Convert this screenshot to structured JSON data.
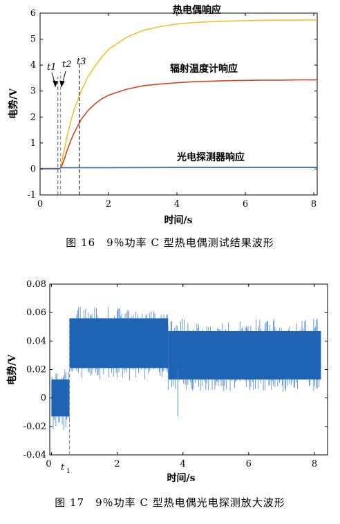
{
  "chart_data": [
    {
      "type": "line",
      "title": "",
      "xlabel": "时间/s",
      "ylabel": "电势/V",
      "xlim": [
        0,
        8.1
      ],
      "ylim": [
        -1,
        6
      ],
      "xticks": [
        0,
        2,
        4,
        6,
        8
      ],
      "yticks": [
        -1,
        0,
        1,
        2,
        3,
        4,
        5,
        6
      ],
      "grid": false,
      "series": [
        {
          "name": "热电偶响应",
          "color": "#f2c029",
          "x": [
            0.0,
            0.55,
            0.6,
            0.65,
            0.7,
            0.8,
            0.9,
            1.0,
            1.2,
            1.4,
            1.6,
            1.8,
            2.0,
            2.5,
            3.0,
            3.5,
            4.0,
            4.5,
            5.0,
            5.5,
            6.0,
            6.5,
            7.0,
            7.5,
            8.0,
            8.1
          ],
          "y": [
            0.02,
            0.02,
            0.05,
            0.35,
            0.7,
            1.3,
            1.85,
            2.3,
            3.0,
            3.55,
            3.95,
            4.3,
            4.6,
            5.05,
            5.33,
            5.48,
            5.58,
            5.64,
            5.67,
            5.69,
            5.71,
            5.72,
            5.73,
            5.73,
            5.74,
            5.74
          ]
        },
        {
          "name": "辐射温度计响应",
          "color": "#d9411e",
          "x": [
            0.0,
            0.58,
            0.63,
            0.7,
            0.8,
            0.9,
            1.0,
            1.2,
            1.4,
            1.6,
            1.8,
            2.0,
            2.5,
            3.0,
            3.5,
            4.0,
            4.5,
            5.0,
            5.5,
            6.0,
            6.5,
            7.0,
            7.5,
            8.0,
            8.1
          ],
          "y": [
            0.02,
            0.02,
            0.1,
            0.35,
            0.75,
            1.1,
            1.4,
            1.9,
            2.25,
            2.5,
            2.7,
            2.84,
            3.06,
            3.2,
            3.27,
            3.32,
            3.36,
            3.38,
            3.4,
            3.41,
            3.42,
            3.42,
            3.43,
            3.43,
            3.43
          ]
        },
        {
          "name": "光电探测器响应",
          "color": "#2e75c8",
          "x": [
            0.0,
            0.55,
            0.6,
            1.0,
            2.0,
            4.0,
            6.0,
            8.1
          ],
          "y": [
            0.0,
            0.0,
            0.05,
            0.05,
            0.05,
            0.06,
            0.06,
            0.06
          ]
        }
      ],
      "markers": [
        {
          "name": "t1",
          "x": 0.52
        },
        {
          "name": "t2",
          "x": 0.6
        },
        {
          "name": "t3",
          "x": 1.15
        }
      ]
    },
    {
      "type": "line",
      "title": "",
      "xlabel": "时间/s",
      "ylabel": "电势/V",
      "xlim": [
        -0.05,
        8.4
      ],
      "ylim": [
        -0.04,
        0.08
      ],
      "xticks": [
        0,
        2,
        4,
        6,
        8
      ],
      "yticks": [
        -0.04,
        -0.02,
        0,
        0.02,
        0.04,
        0.06,
        0.08
      ],
      "grid": false,
      "series": [
        {
          "name": "",
          "color": "#1f64b4",
          "segments": [
            {
              "x0": 0.0,
              "x1": 0.55,
              "low": -0.013,
              "high": 0.013,
              "spike_low": -0.023,
              "spike_high": 0.021
            },
            {
              "x0": 0.55,
              "x1": 3.55,
              "low": 0.021,
              "high": 0.056,
              "spike_low": 0.012,
              "spike_high": 0.064
            },
            {
              "x0": 3.55,
              "x1": 8.2,
              "low": 0.013,
              "high": 0.047,
              "spike_low": 0.004,
              "spike_high": 0.056
            }
          ],
          "outlier": {
            "x": 3.85,
            "y": -0.013
          }
        }
      ],
      "markers": [
        {
          "name": "t1",
          "x": 0.55
        }
      ]
    }
  ],
  "labels": {
    "fig1_series": [
      "热电偶响应",
      "辐射温度计响应",
      "光电探测器响应"
    ],
    "fig2_t1": "t",
    "fig2_t1_sub": "1",
    "fig2_zero": "0"
  },
  "captions": {
    "fig16": "图 16　9％功率 C 型热电偶测试结果波形",
    "fig17": "图 17　9％功率 C 型热电偶光电探测放大波形"
  }
}
